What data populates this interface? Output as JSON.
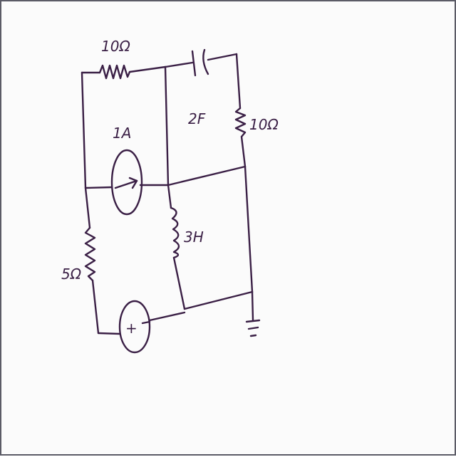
{
  "labels": {
    "r_top": "10Ω",
    "cap": "2F",
    "r_right": "10Ω",
    "current_source": "1A",
    "inductor": "3H",
    "r_left": "5Ω",
    "vsource_sign": "+"
  },
  "colors": {
    "ink": "#3a1f45",
    "paper": "#fbfbfb",
    "border": "#5b5b66"
  }
}
